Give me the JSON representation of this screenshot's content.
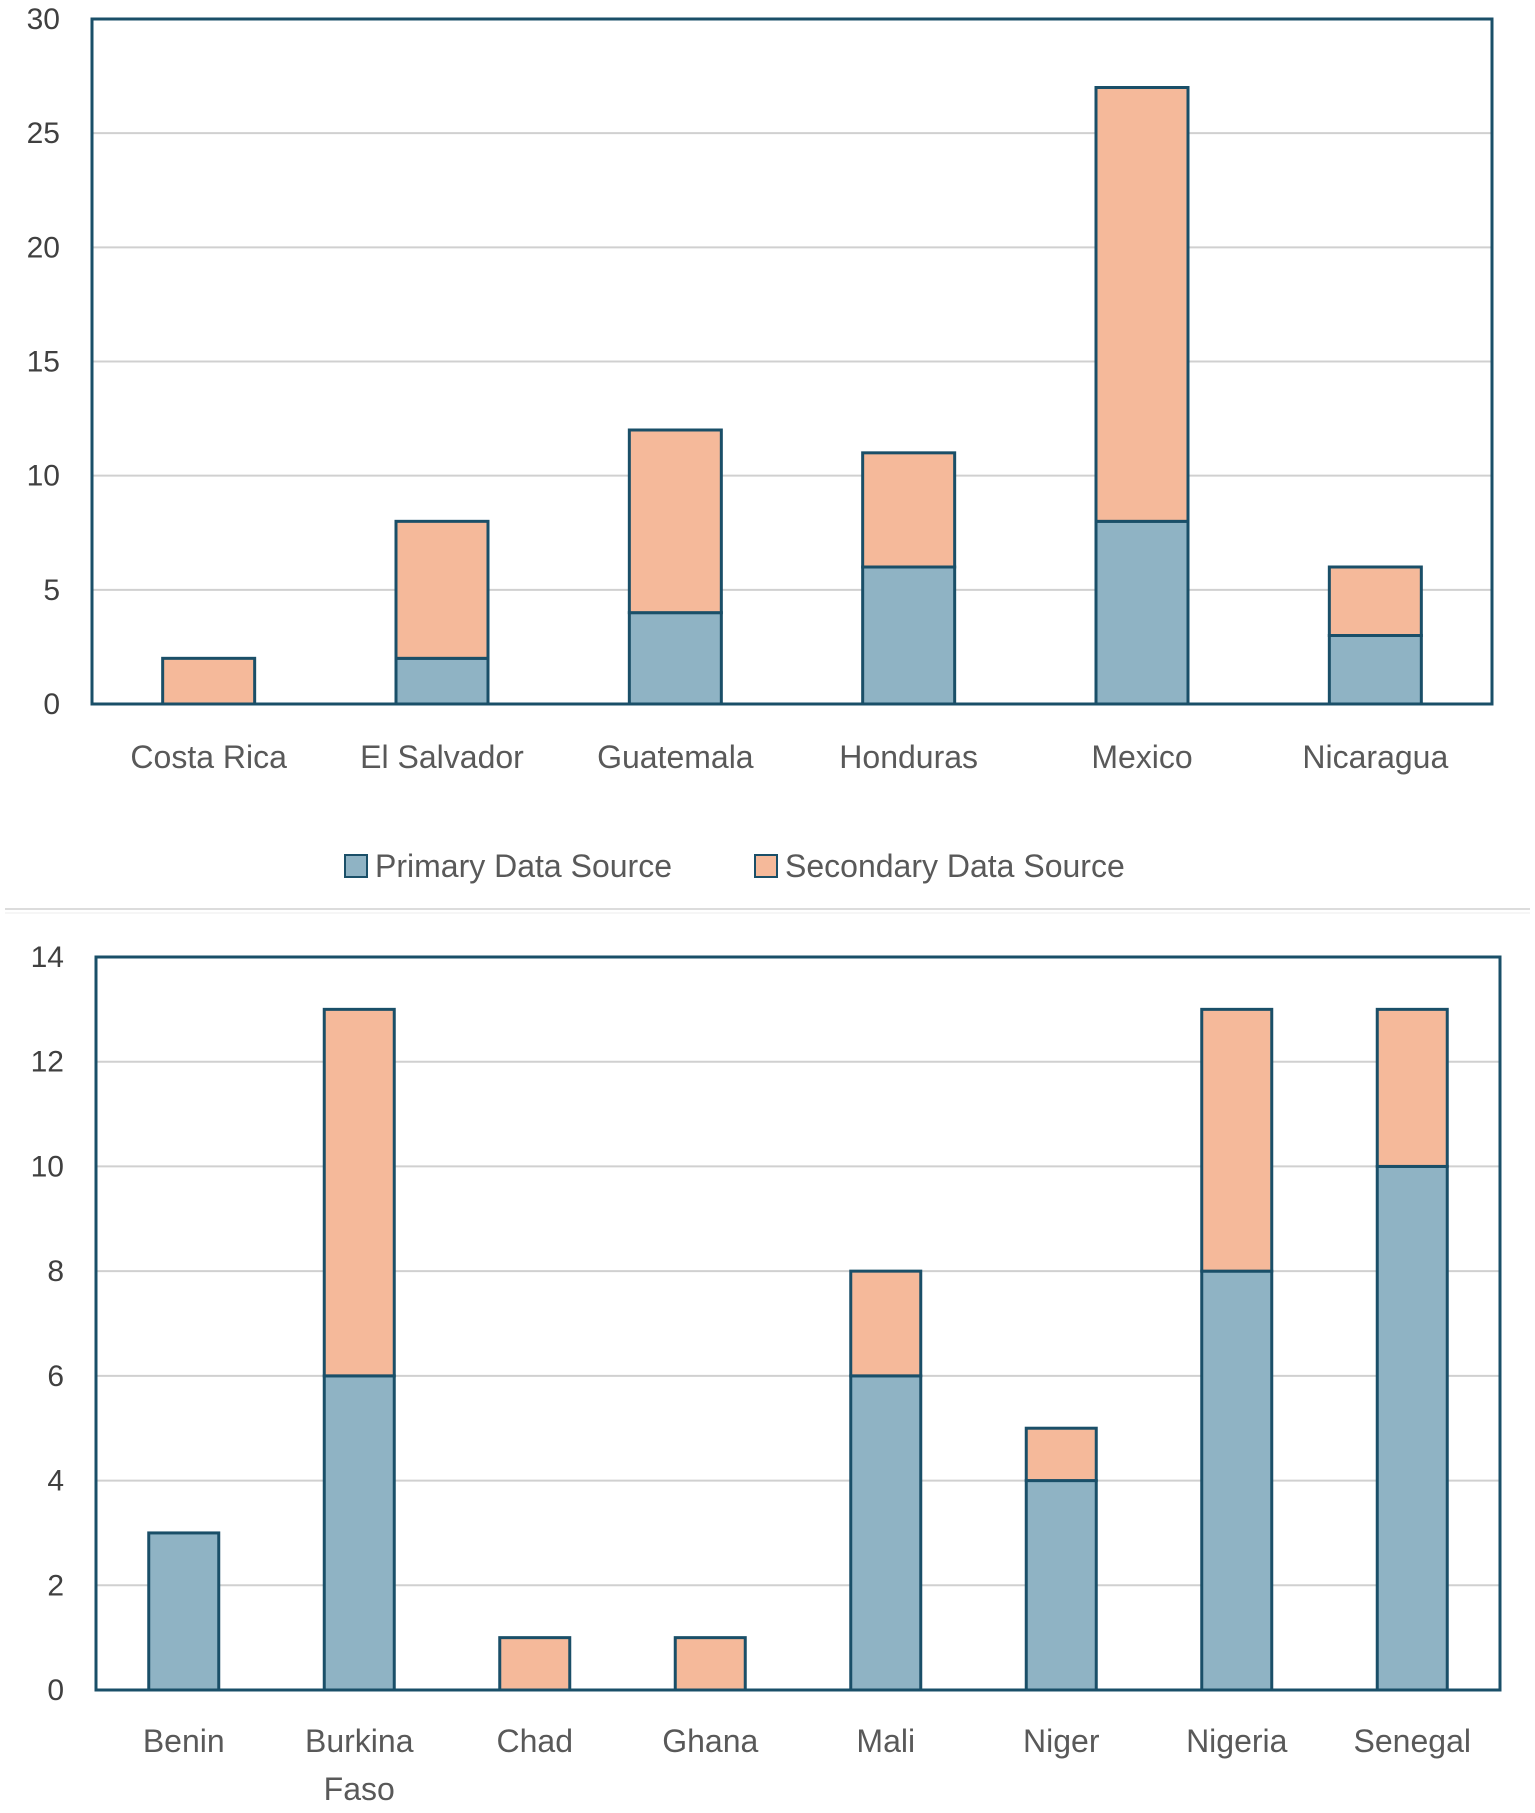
{
  "colors": {
    "primary": "#8fb3c4",
    "secondary": "#f5b99a",
    "outline": "#1a4f68",
    "grid": "#d0d0d0",
    "divider": "#dcdcdc"
  },
  "chart_data": [
    {
      "type": "bar",
      "stacked": true,
      "categories": [
        "Costa Rica",
        "El Salvador",
        "Guatemala",
        "Honduras",
        "Mexico",
        "Nicaragua"
      ],
      "series": [
        {
          "name": "Primary Data Source",
          "values": [
            0,
            2,
            4,
            6,
            8,
            3
          ]
        },
        {
          "name": "Secondary Data Source",
          "values": [
            2,
            6,
            8,
            5,
            19,
            3
          ]
        }
      ],
      "ylim": [
        0,
        30
      ],
      "yticks": [
        "0",
        "5",
        "10",
        "15",
        "20",
        "25",
        "30"
      ],
      "grid": true,
      "legend": "bottom",
      "legend_labels": [
        "Primary Data Source",
        "Secondary Data Source"
      ]
    },
    {
      "type": "bar",
      "stacked": true,
      "categories": [
        "Benin",
        "Burkina Faso",
        "Chad",
        "Ghana",
        "Mali",
        "Niger",
        "Nigeria",
        "Senegal"
      ],
      "category_lines": [
        [
          "Benin"
        ],
        [
          "Burkina",
          "Faso"
        ],
        [
          "Chad"
        ],
        [
          "Ghana"
        ],
        [
          "Mali"
        ],
        [
          "Niger"
        ],
        [
          "Nigeria"
        ],
        [
          "Senegal"
        ]
      ],
      "series": [
        {
          "name": "Primary Data Source",
          "values": [
            3,
            6,
            0,
            0,
            6,
            4,
            8,
            10
          ]
        },
        {
          "name": "Secondary Data Source",
          "values": [
            0,
            7,
            1,
            1,
            2,
            1,
            5,
            3
          ]
        }
      ],
      "ylim": [
        0,
        14
      ],
      "yticks": [
        "0",
        "2",
        "4",
        "6",
        "8",
        "10",
        "12",
        "14"
      ],
      "grid": true,
      "legend": "none"
    }
  ]
}
